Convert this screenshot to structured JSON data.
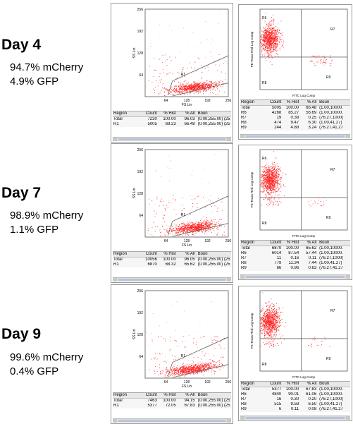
{
  "days": [
    {
      "day": "Day 4",
      "mcherry": "94.7% mCherry",
      "gfp": "4.9% GFP",
      "fs_ss": {
        "region_label": "R1",
        "ylabel": "SS Lin",
        "xlabel": "FS Lin",
        "yticks": [
          "256",
          "192",
          "128",
          "64"
        ],
        "xticks": [
          "64",
          "128",
          "192",
          "256"
        ],
        "table_head": [
          "Region",
          "Count",
          "% Hist",
          "% All",
          "Boun"
        ],
        "table_rows": [
          [
            "Total",
            "7230",
            "100.00",
            "96.03",
            "(0.00,255.00) (25"
          ],
          [
            "R1",
            "5005",
            "69.23",
            "66.48",
            "(0.00,255.00) (25"
          ]
        ]
      },
      "fitc_pe": {
        "ylabel": "PE-Texas Red Log Comp",
        "xlabel": "FITC Log Comp",
        "regions": [
          "R6",
          "R7",
          "R8",
          "R9"
        ],
        "table_head": [
          "Region",
          "Count",
          "% Hist",
          "% All",
          "Boun"
        ],
        "table_rows": [
          [
            "Total",
            "5005",
            "100.00",
            "66.48",
            "(1.00,10000."
          ],
          [
            "R6",
            "4268",
            "85.27",
            "56.69",
            "(1.00,10000."
          ],
          [
            "R7",
            "19",
            "0.38",
            "0.25",
            "(76.27,1000("
          ],
          [
            "R8",
            "474",
            "9.47",
            "6.30",
            "(1.00,41.27)"
          ],
          [
            "R9",
            "244",
            "4.88",
            "3.24",
            "(76.27,41.27"
          ]
        ]
      }
    },
    {
      "day": "Day 7",
      "mcherry": "98.9% mCherry",
      "gfp": "1.1% GFP",
      "fs_ss": {
        "region_label": "R1",
        "ylabel": "SS Lin",
        "xlabel": "FS Lin",
        "yticks": [
          "256",
          "192",
          "128",
          "64"
        ],
        "xticks": [
          "64",
          "128",
          "192",
          "256"
        ],
        "table_head": [
          "Region",
          "Count",
          "% Hist",
          "% All",
          "Boun"
        ],
        "table_rows": [
          [
            "Total",
            "10056",
            "100.00",
            "96.05",
            "(0.00,255.00) (25"
          ],
          [
            "R1",
            "6870",
            "68.32",
            "65.62",
            "(0.00,255.00) (25"
          ]
        ]
      },
      "fitc_pe": {
        "ylabel": "PE-Texas Red Log Comp",
        "xlabel": "FITC Log Comp",
        "regions": [
          "R6",
          "R7",
          "R8",
          "R9"
        ],
        "table_head": [
          "Region",
          "Count",
          "% Hist",
          "% All",
          "Boun"
        ],
        "table_rows": [
          [
            "Total",
            "6870",
            "100.00",
            "65.62",
            "(1.00,10000."
          ],
          [
            "R6",
            "6014",
            "87.54",
            "57.44",
            "(1.00,10000."
          ],
          [
            "R7",
            "11",
            "0.16",
            "0.11",
            "(76.27,1000("
          ],
          [
            "R8",
            "779",
            "11.34",
            "7.44",
            "(1.00,41.27)"
          ],
          [
            "R9",
            "66",
            "0.96",
            "0.63",
            "(76.27,41.27"
          ]
        ]
      }
    },
    {
      "day": "Day 9",
      "mcherry": "99.6% mCherry",
      "gfp": "0.4% GFP",
      "fs_ss": {
        "region_label": "R1",
        "ylabel": "SS Lin",
        "xlabel": "FS Lin",
        "yticks": [
          "256",
          "192",
          "128",
          "64"
        ],
        "xticks": [
          "64",
          "128",
          "192",
          "256"
        ],
        "table_head": [
          "Region",
          "Count",
          "% Hist",
          "% All",
          "Boun"
        ],
        "table_rows": [
          [
            "Total",
            "7463",
            "100.00",
            "94.15",
            "(0.00,255.00) (25"
          ],
          [
            "R1",
            "5377",
            "72.05",
            "67.83",
            "(0.00,255.00) (25"
          ]
        ]
      },
      "fitc_pe": {
        "ylabel": "PE-Texas Red Log Comp",
        "xlabel": "FITC Log Comp",
        "regions": [
          "R7",
          "R8",
          "R9"
        ],
        "table_head": [
          "Region",
          "Count",
          "% Hist",
          "% All",
          "Boun"
        ],
        "table_rows": [
          [
            "Total",
            "5377",
            "100.00",
            "67.83",
            "(1.00,10000."
          ],
          [
            "R6",
            "4840",
            "90.01",
            "61.06",
            "(1.00,10000."
          ],
          [
            "R7",
            "16",
            "0.30",
            "0.20",
            "(76.27,1000("
          ],
          [
            "R8",
            "515",
            "9.58",
            "6.50",
            "(1.00,41.27)"
          ],
          [
            "R9",
            "6",
            "0.11",
            "0.08",
            "(76.27,41.27"
          ]
        ]
      }
    }
  ],
  "chart_data": {
    "type": "scatter",
    "point_color": "#ff2020",
    "panels": [
      {
        "day": "Day 4",
        "plot": "FS Lin vs SS Lin",
        "xlim": [
          0,
          256
        ],
        "ylim": [
          0,
          256
        ],
        "cluster_center": [
          150,
          28
        ]
      },
      {
        "day": "Day 4",
        "plot": "FITC Log Comp vs PE-Texas Red Log Comp",
        "scale": "log",
        "xlim": [
          1,
          10000
        ],
        "ylim": [
          1,
          10000
        ],
        "gate_x": 76.27,
        "gate_y": 41.27
      },
      {
        "day": "Day 7",
        "plot": "FS Lin vs SS Lin",
        "xlim": [
          0,
          256
        ],
        "ylim": [
          0,
          256
        ],
        "cluster_center": [
          150,
          28
        ]
      },
      {
        "day": "Day 7",
        "plot": "FITC Log Comp vs PE-Texas Red Log Comp",
        "scale": "log",
        "xlim": [
          1,
          10000
        ],
        "ylim": [
          1,
          10000
        ],
        "gate_x": 76.27,
        "gate_y": 41.27
      },
      {
        "day": "Day 9",
        "plot": "FS Lin vs SS Lin",
        "xlim": [
          0,
          256
        ],
        "ylim": [
          0,
          256
        ],
        "cluster_center": [
          140,
          28
        ]
      },
      {
        "day": "Day 9",
        "plot": "FITC Log Comp vs PE-Texas Red Log Comp",
        "scale": "log",
        "xlim": [
          1,
          10000
        ],
        "ylim": [
          1,
          10000
        ],
        "gate_x": 76.27,
        "gate_y": 41.27
      }
    ]
  }
}
